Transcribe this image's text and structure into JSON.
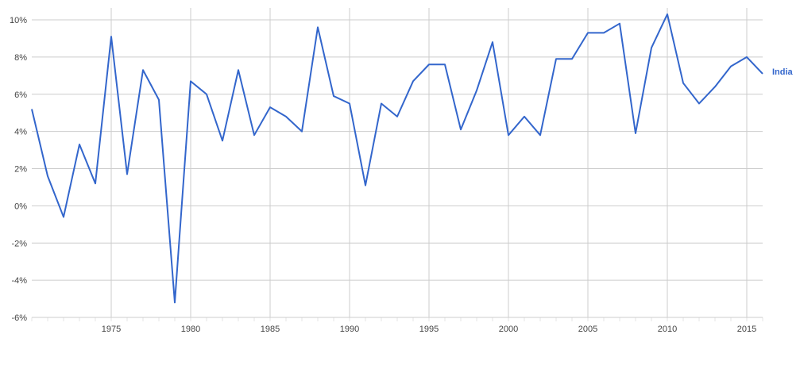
{
  "chart_data": {
    "type": "line",
    "title": "",
    "xlabel": "",
    "ylabel": "",
    "xlim": [
      1970,
      2016
    ],
    "ylim": [
      -6,
      10
    ],
    "grid": true,
    "legend_placement": "right-end-label",
    "x_ticks": [
      {
        "value": 1975,
        "label": "1975"
      },
      {
        "value": 1980,
        "label": "1980"
      },
      {
        "value": 1985,
        "label": "1985"
      },
      {
        "value": 1990,
        "label": "1990"
      },
      {
        "value": 1995,
        "label": "1995"
      },
      {
        "value": 2000,
        "label": "2000"
      },
      {
        "value": 2005,
        "label": "2005"
      },
      {
        "value": 2010,
        "label": "2010"
      },
      {
        "value": 2015,
        "label": "2015"
      }
    ],
    "y_ticks": [
      {
        "value": 10,
        "label": "10%"
      },
      {
        "value": 8,
        "label": "8%"
      },
      {
        "value": 6,
        "label": "6%"
      },
      {
        "value": 4,
        "label": "4%"
      },
      {
        "value": 2,
        "label": "2%"
      },
      {
        "value": 0,
        "label": "0%"
      },
      {
        "value": -2,
        "label": "-2%"
      },
      {
        "value": -4,
        "label": "-4%"
      },
      {
        "value": -6,
        "label": "-6%"
      }
    ],
    "x": [
      1970,
      1971,
      1972,
      1973,
      1974,
      1975,
      1976,
      1977,
      1978,
      1979,
      1980,
      1981,
      1982,
      1983,
      1984,
      1985,
      1986,
      1987,
      1988,
      1989,
      1990,
      1991,
      1992,
      1993,
      1994,
      1995,
      1996,
      1997,
      1998,
      1999,
      2000,
      2001,
      2002,
      2003,
      2004,
      2005,
      2006,
      2007,
      2008,
      2009,
      2010,
      2011,
      2012,
      2013,
      2014,
      2015,
      2016
    ],
    "series": [
      {
        "name": "India",
        "color": "#3366cc",
        "values": [
          5.2,
          1.6,
          -0.6,
          3.3,
          1.2,
          9.1,
          1.7,
          7.3,
          5.7,
          -5.2,
          6.7,
          6.0,
          3.5,
          7.3,
          3.8,
          5.3,
          4.8,
          4.0,
          9.6,
          5.9,
          5.5,
          1.1,
          5.5,
          4.8,
          6.7,
          7.6,
          7.6,
          4.1,
          6.2,
          8.8,
          3.8,
          4.8,
          3.8,
          7.9,
          7.9,
          9.3,
          9.3,
          9.8,
          3.9,
          8.5,
          10.3,
          6.6,
          5.5,
          6.4,
          7.5,
          8.0,
          7.1
        ]
      }
    ],
    "colors": {
      "major_grid": "#cccccc",
      "minor_tick": "#e6e6e6",
      "axis_text": "#444444",
      "series_label": "#3366cc"
    }
  }
}
